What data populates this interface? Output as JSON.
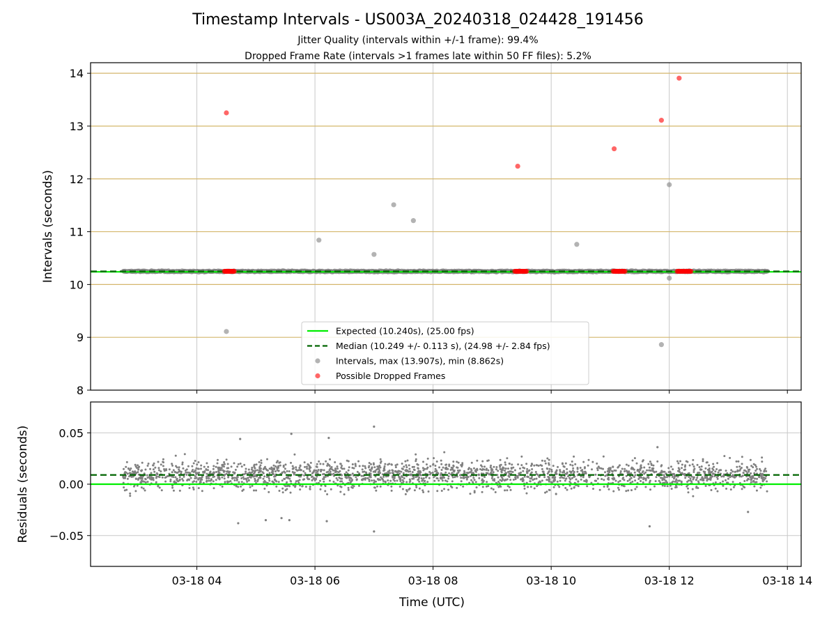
{
  "figure": {
    "title": "Timestamp Intervals - US003A_20240318_024428_191456",
    "subtitle_line1": "Jitter Quality (intervals within +/-1 frame): 99.4%",
    "subtitle_line2": "Dropped Frame Rate (intervals >1 frames late within 50 FF files): 5.2%"
  },
  "colors": {
    "expected": "#00ee00",
    "median": "#006400",
    "intervals": "#808080",
    "dropped": "#ff0000",
    "frame_gridlines": "#d4b66b",
    "grid": "#c8c8c8"
  },
  "chart_data": [
    {
      "type": "scatter",
      "ylabel": "Intervals (seconds)",
      "ylim": [
        8,
        14.2
      ],
      "xlim": [
        "03-18 02:12",
        "03-18 14:14"
      ],
      "yticks": [
        8,
        9,
        10,
        11,
        12,
        13,
        14
      ],
      "x_tick_labels": [
        "03-18 04",
        "03-18 06",
        "03-18 08",
        "03-18 10",
        "03-18 12",
        "03-18 14"
      ],
      "grid": true,
      "frame_gridlines": [
        9.0,
        10.0,
        10.24,
        11.0,
        12.0,
        13.0,
        14.0
      ],
      "expected": 10.24,
      "median": 10.249,
      "band": {
        "start": "03-18 02:45",
        "end": "03-18 13:40",
        "center": 10.249,
        "spread": 0.02
      },
      "legend": {
        "position": "lower center",
        "entries": [
          "Expected (10.240s), (25.00 fps)",
          "Median (10.249 +/- 0.113 s), (24.98 +/- 2.84 fps)",
          "Intervals, max (13.907s), min (8.862s)",
          "Possible Dropped Frames"
        ]
      },
      "series": [
        {
          "name": "Intervals, max (13.907s), min (8.862s)",
          "points": [
            {
              "t": "03-18 04:30",
              "y": 9.11
            },
            {
              "t": "03-18 06:04",
              "y": 10.84
            },
            {
              "t": "03-18 07:00",
              "y": 10.57
            },
            {
              "t": "03-18 07:20",
              "y": 11.51
            },
            {
              "t": "03-18 07:40",
              "y": 11.21
            },
            {
              "t": "03-18 10:26",
              "y": 10.76
            },
            {
              "t": "03-18 11:52",
              "y": 8.862
            },
            {
              "t": "03-18 12:00",
              "y": 11.89
            },
            {
              "t": "03-18 12:00",
              "y": 10.12
            }
          ]
        },
        {
          "name": "Possible Dropped Frames",
          "points": [
            {
              "t": "03-18 04:30",
              "y": 13.25
            },
            {
              "t": "03-18 09:26",
              "y": 12.24
            },
            {
              "t": "03-18 11:04",
              "y": 12.57
            },
            {
              "t": "03-18 11:52",
              "y": 13.11
            },
            {
              "t": "03-18 12:10",
              "y": 13.907
            }
          ]
        }
      ],
      "dropped_clusters": [
        {
          "start": "03-18 04:28",
          "end": "03-18 04:38",
          "y": 10.25
        },
        {
          "start": "03-18 09:23",
          "end": "03-18 09:35",
          "y": 10.25
        },
        {
          "start": "03-18 11:03",
          "end": "03-18 11:15",
          "y": 10.25
        },
        {
          "start": "03-18 12:08",
          "end": "03-18 12:22",
          "y": 10.25
        }
      ]
    },
    {
      "type": "scatter",
      "xlabel": "Time (UTC)",
      "ylabel": "Residuals (seconds)",
      "ylim": [
        -0.08,
        0.08
      ],
      "xlim": [
        "03-18 02:12",
        "03-18 14:14"
      ],
      "yticks": [
        -0.05,
        0.0,
        0.05
      ],
      "ytick_labels": [
        "−0.05",
        "0.00",
        "0.05"
      ],
      "x_tick_labels": [
        "03-18 04",
        "03-18 06",
        "03-18 08",
        "03-18 10",
        "03-18 12",
        "03-18 14"
      ],
      "grid": true,
      "expected": 0.0,
      "median": 0.009,
      "band": {
        "start": "03-18 02:45",
        "end": "03-18 13:40",
        "center": 0.009,
        "spread": 0.011
      },
      "outliers": [
        {
          "t": "03-18 05:10",
          "y": -0.035
        },
        {
          "t": "03-18 05:26",
          "y": -0.033
        },
        {
          "t": "03-18 05:34",
          "y": -0.035
        },
        {
          "t": "03-18 06:12",
          "y": -0.036
        },
        {
          "t": "03-18 07:00",
          "y": -0.046
        },
        {
          "t": "03-18 04:42",
          "y": -0.038
        },
        {
          "t": "03-18 11:40",
          "y": -0.041
        },
        {
          "t": "03-18 13:20",
          "y": -0.027
        },
        {
          "t": "03-18 05:36",
          "y": 0.049
        },
        {
          "t": "03-18 07:00",
          "y": 0.056
        },
        {
          "t": "03-18 06:14",
          "y": 0.045
        },
        {
          "t": "03-18 04:44",
          "y": 0.044
        },
        {
          "t": "03-18 11:48",
          "y": 0.036
        }
      ]
    }
  ]
}
